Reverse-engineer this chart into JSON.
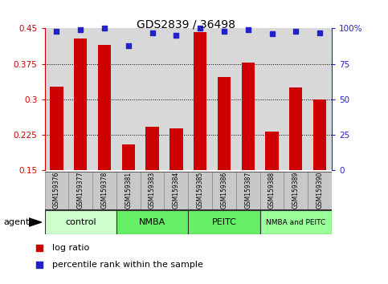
{
  "title": "GDS2839 / 36498",
  "samples": [
    "GSM159376",
    "GSM159377",
    "GSM159378",
    "GSM159381",
    "GSM159383",
    "GSM159384",
    "GSM159385",
    "GSM159386",
    "GSM159387",
    "GSM159388",
    "GSM159389",
    "GSM159390"
  ],
  "log_ratio": [
    0.327,
    0.428,
    0.415,
    0.205,
    0.243,
    0.238,
    0.443,
    0.348,
    0.378,
    0.232,
    0.325,
    0.3
  ],
  "percentile_rank": [
    98,
    99,
    100,
    88,
    97,
    95,
    100,
    98,
    99,
    96,
    98,
    97
  ],
  "bar_color": "#cc0000",
  "dot_color": "#2222cc",
  "ylim_left": [
    0.15,
    0.45
  ],
  "ylim_right": [
    0,
    100
  ],
  "yticks_left": [
    0.15,
    0.225,
    0.3,
    0.375,
    0.45
  ],
  "yticks_right": [
    0,
    25,
    50,
    75,
    100
  ],
  "groups": [
    {
      "label": "control",
      "start": 0,
      "end": 3,
      "color": "#ccffcc"
    },
    {
      "label": "NMBA",
      "start": 3,
      "end": 6,
      "color": "#66ee66"
    },
    {
      "label": "PEITC",
      "start": 6,
      "end": 9,
      "color": "#66ee66"
    },
    {
      "label": "NMBA and PEITC",
      "start": 9,
      "end": 12,
      "color": "#99ff99"
    }
  ],
  "xlabel_agent": "agent",
  "legend_log_ratio": "log ratio",
  "legend_percentile": "percentile rank within the sample",
  "plot_bg_color": "#d8d8d8",
  "left_axis_color": "#cc0000",
  "right_axis_color": "#2222cc",
  "grid_color": "#000000",
  "cell_bg_color": "#c8c8c8",
  "cell_edge_color": "#888888",
  "title_fontsize": 10,
  "tick_fontsize": 7.5,
  "sample_fontsize": 5.5,
  "group_fontsize": 8,
  "legend_fontsize": 8
}
